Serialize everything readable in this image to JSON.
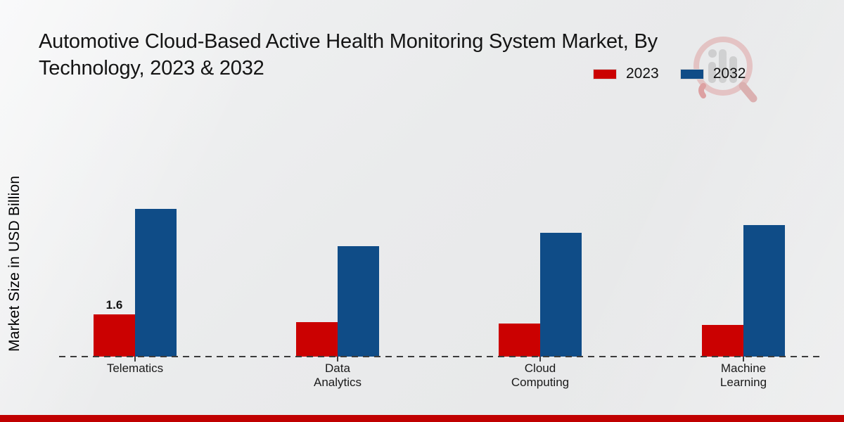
{
  "title": "Automotive Cloud-Based Active Health Monitoring System Market, By\nTechnology, 2023 & 2032",
  "ylabel": "Market Size in USD Billion",
  "legend": [
    {
      "label": "2023",
      "color": "#cb0101"
    },
    {
      "label": "2032",
      "color": "#0f4c87"
    }
  ],
  "watermark_icon": "mrfr-magnifier-bar-chart-logo",
  "footer_bar_color": "#c00000",
  "accent_colors": {
    "red_2023": "#cb0101",
    "blue_2032": "#0f4c87",
    "baseline": "#3c3c3c"
  },
  "chart_data": {
    "type": "bar",
    "title": "Automotive Cloud-Based Active Health Monitoring System Market, By Technology, 2023 & 2032",
    "categories": [
      "Telematics",
      "Data\nAnalytics",
      "Cloud\nComputing",
      "Machine\nLearning"
    ],
    "series": [
      {
        "name": "2023",
        "color": "#cb0101",
        "values": [
          1.6,
          1.3,
          1.25,
          1.2
        ],
        "bar_labels": [
          "1.6",
          "",
          "",
          ""
        ]
      },
      {
        "name": "2032",
        "color": "#0f4c87",
        "values": [
          5.6,
          4.2,
          4.7,
          5.0
        ],
        "bar_labels": [
          "",
          "",
          "",
          ""
        ]
      }
    ],
    "xlabel": "",
    "ylabel": "Market Size in USD Billion",
    "ylim": [
      0,
      6.5
    ],
    "grid": false,
    "y_axis_ticks_visible": false,
    "baseline_style": "dashed",
    "legend_position": "top-right"
  }
}
